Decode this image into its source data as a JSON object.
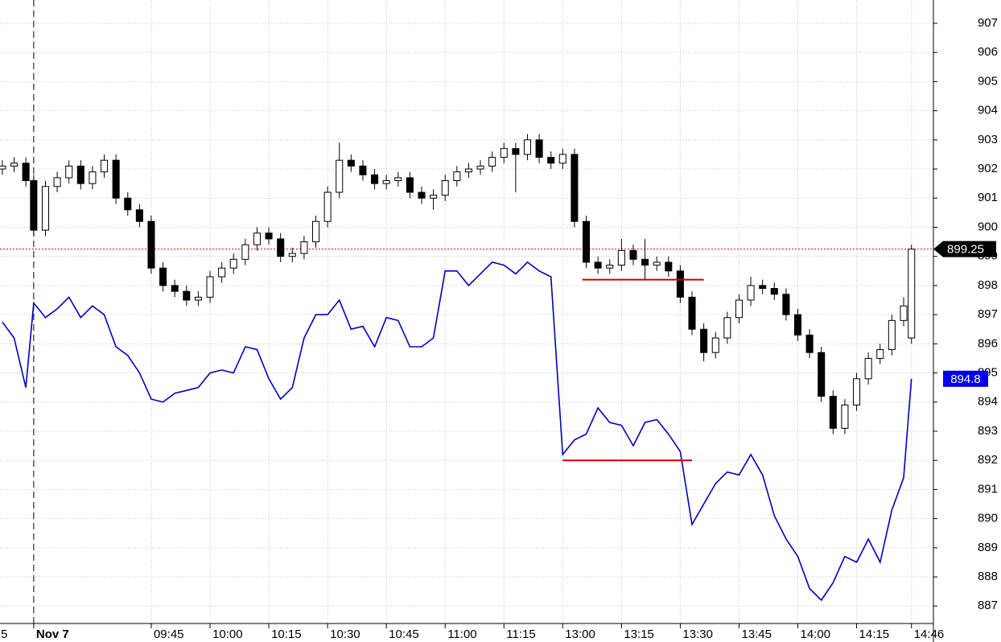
{
  "chart_data": {
    "type": "candlestick",
    "x": [
      -8,
      -5,
      -2,
      0,
      3,
      6,
      9,
      12,
      15,
      18,
      21,
      24,
      27,
      30,
      33,
      36,
      39,
      42,
      45,
      48,
      51,
      54,
      57,
      60,
      63,
      66,
      69,
      72,
      75,
      78,
      81,
      84,
      87,
      90,
      93,
      96,
      99,
      102,
      105,
      108,
      111,
      114,
      117,
      120,
      123,
      126,
      129,
      132,
      135,
      138,
      141,
      144,
      147,
      150,
      153,
      156,
      159,
      162,
      165,
      168,
      171,
      174,
      177,
      180,
      183,
      186,
      189,
      192,
      195,
      198,
      201,
      204,
      207,
      210,
      213,
      216,
      219,
      222,
      224
    ],
    "open": [
      902.0,
      902.1,
      902.2,
      901.6,
      899.9,
      901.4,
      901.7,
      902.1,
      901.5,
      901.9,
      902.3,
      901.0,
      900.6,
      900.2,
      898.6,
      898.0,
      897.8,
      897.5,
      897.6,
      898.3,
      898.6,
      898.9,
      899.4,
      899.8,
      899.6,
      899.0,
      899.1,
      899.5,
      900.2,
      901.2,
      902.3,
      902.1,
      901.8,
      901.5,
      901.6,
      901.7,
      901.2,
      901.0,
      901.1,
      901.6,
      901.9,
      902.0,
      902.1,
      902.4,
      902.7,
      902.5,
      903.0,
      902.4,
      902.2,
      902.5,
      900.2,
      898.8,
      898.6,
      898.7,
      899.2,
      898.9,
      898.7,
      898.8,
      898.5,
      897.6,
      896.5,
      895.7,
      896.2,
      896.9,
      897.5,
      898.0,
      897.9,
      897.7,
      897.0,
      896.3,
      895.7,
      894.2,
      893.1,
      893.9,
      894.8,
      895.5,
      895.8,
      896.8,
      896.2
    ],
    "high": [
      902.3,
      902.4,
      902.4,
      901.8,
      901.6,
      901.9,
      902.3,
      902.3,
      902.1,
      902.5,
      902.5,
      901.2,
      900.8,
      900.4,
      898.8,
      898.2,
      898.0,
      897.8,
      898.5,
      898.8,
      899.1,
      899.6,
      900.0,
      900.0,
      899.8,
      899.3,
      899.7,
      900.4,
      901.4,
      902.9,
      902.5,
      902.3,
      902.0,
      901.8,
      901.9,
      901.9,
      901.4,
      901.3,
      901.8,
      902.1,
      902.2,
      902.3,
      902.6,
      902.9,
      902.9,
      903.2,
      903.2,
      902.6,
      902.7,
      902.7,
      900.4,
      899.0,
      898.9,
      899.6,
      899.4,
      899.6,
      899.0,
      899.0,
      898.7,
      897.8,
      896.7,
      896.4,
      897.1,
      897.7,
      898.3,
      898.2,
      898.1,
      897.9,
      897.2,
      896.5,
      895.9,
      894.4,
      894.1,
      895.0,
      895.7,
      896.0,
      897.0,
      897.6,
      899.4
    ],
    "low": [
      901.8,
      901.9,
      901.4,
      899.7,
      899.7,
      901.2,
      901.5,
      901.3,
      901.3,
      901.7,
      900.8,
      900.4,
      900.0,
      898.4,
      897.8,
      897.6,
      897.3,
      897.3,
      897.4,
      898.1,
      898.4,
      898.7,
      899.2,
      899.4,
      898.8,
      898.8,
      898.9,
      899.3,
      900.0,
      901.0,
      901.9,
      901.6,
      901.3,
      901.3,
      901.4,
      901.0,
      900.8,
      900.6,
      900.9,
      901.4,
      901.7,
      901.8,
      901.9,
      902.2,
      901.2,
      902.3,
      902.2,
      902.0,
      902.0,
      900.0,
      898.6,
      898.4,
      898.4,
      898.5,
      898.7,
      898.2,
      898.5,
      898.3,
      897.4,
      896.3,
      895.4,
      895.5,
      896.0,
      896.7,
      897.3,
      897.7,
      897.5,
      896.8,
      896.1,
      895.5,
      894.0,
      892.9,
      892.9,
      893.7,
      894.6,
      895.3,
      895.6,
      896.6,
      896.0
    ],
    "close": [
      902.1,
      902.2,
      901.6,
      899.9,
      901.4,
      901.7,
      902.1,
      901.5,
      901.9,
      902.3,
      901.0,
      900.6,
      900.2,
      898.6,
      898.0,
      897.8,
      897.5,
      897.6,
      898.3,
      898.6,
      898.9,
      899.4,
      899.8,
      899.6,
      899.0,
      899.1,
      899.5,
      900.2,
      901.2,
      902.3,
      902.1,
      901.8,
      901.5,
      901.6,
      901.7,
      901.2,
      901.0,
      901.1,
      901.6,
      901.9,
      902.0,
      902.1,
      902.4,
      902.7,
      902.5,
      903.0,
      902.4,
      902.2,
      902.5,
      900.2,
      898.8,
      898.6,
      898.7,
      899.2,
      898.9,
      898.7,
      898.8,
      898.5,
      897.6,
      896.5,
      895.7,
      896.2,
      896.9,
      897.5,
      898.0,
      897.9,
      897.7,
      897.0,
      896.3,
      895.7,
      894.2,
      893.1,
      893.9,
      894.8,
      895.5,
      895.8,
      896.8,
      897.3,
      899.25
    ],
    "up_color": "#ffffff",
    "down_color": "#000000",
    "series": [
      {
        "color": "#0000c0",
        "values": [
          896.75,
          896.2,
          894.5,
          897.4,
          896.9,
          897.2,
          897.6,
          896.9,
          897.3,
          897.0,
          895.9,
          895.6,
          895.0,
          894.1,
          894.0,
          894.3,
          894.4,
          894.5,
          895.0,
          895.1,
          895.0,
          895.9,
          895.8,
          894.8,
          894.1,
          894.5,
          896.2,
          897.0,
          897.0,
          897.5,
          896.5,
          896.6,
          895.9,
          896.9,
          896.8,
          895.9,
          895.9,
          896.2,
          898.5,
          898.5,
          898.0,
          898.4,
          898.8,
          898.7,
          898.4,
          898.8,
          898.5,
          898.3,
          892.2,
          892.7,
          892.9,
          893.8,
          893.3,
          893.2,
          892.5,
          893.3,
          893.4,
          892.9,
          892.3,
          889.8,
          890.5,
          891.2,
          891.6,
          891.5,
          892.2,
          891.5,
          890.1,
          889.3,
          888.7,
          887.6,
          887.2,
          887.8,
          888.7,
          888.5,
          889.3,
          888.5,
          890.3,
          891.4,
          894.8
        ]
      }
    ],
    "hlines": [
      {
        "value": 898.2,
        "x": [
          140,
          171
        ],
        "color": "#cc0000"
      },
      {
        "value": 892.0,
        "x": [
          135,
          168
        ],
        "color": "#cc0000"
      }
    ],
    "price_tags": [
      {
        "value": 899.25,
        "color": "#000000"
      },
      {
        "value": 894.8,
        "color": "#0000ee"
      }
    ],
    "session_breaks": [
      0
    ],
    "xlim": [
      -8.6,
      229.6
    ],
    "xticks": [
      {
        "value": -9,
        "label": "5"
      },
      {
        "value": 0,
        "label": "Nov 7"
      },
      {
        "value": 30,
        "label": "09:45"
      },
      {
        "value": 45,
        "label": "10:00"
      },
      {
        "value": 60,
        "label": "10:15"
      },
      {
        "value": 75,
        "label": "10:30"
      },
      {
        "value": 90,
        "label": "10:45"
      },
      {
        "value": 105,
        "label": "11:00"
      },
      {
        "value": 120,
        "label": "11:15"
      },
      {
        "value": 135,
        "label": "13:00"
      },
      {
        "value": 150,
        "label": "13:15"
      },
      {
        "value": 165,
        "label": "13:30"
      },
      {
        "value": 180,
        "label": "13:45"
      },
      {
        "value": 195,
        "label": "14:00"
      },
      {
        "value": 210,
        "label": "14:15"
      },
      {
        "value": 224,
        "label": "14:46"
      }
    ],
    "ylim": [
      886.4,
      907.8
    ],
    "yticks": [
      887,
      888,
      889,
      890,
      891,
      892,
      893,
      894,
      895,
      896,
      897,
      898,
      899,
      900,
      901,
      902,
      903,
      904,
      905,
      906,
      907
    ],
    "grid": true
  }
}
